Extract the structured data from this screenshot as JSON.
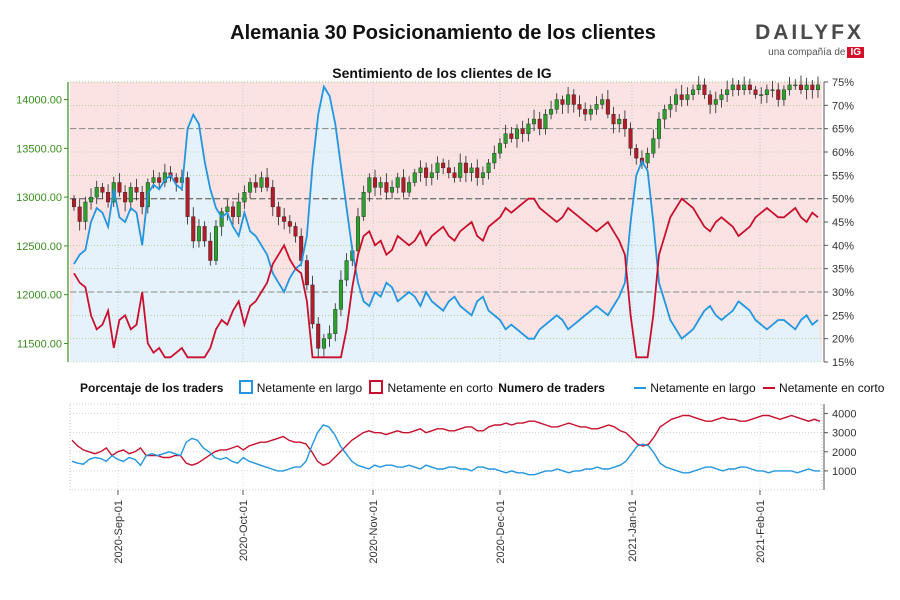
{
  "header": {
    "title": "Alemania 30 Posicionamiento de los clientes",
    "logo_text": "DAILYFX",
    "logo_tagline": "una compañía de",
    "logo_badge": "IG"
  },
  "chart_data": [
    {
      "id": "price-sentiment",
      "type": "candlestick-with-sentiment",
      "title": "Sentimiento de los clientes de IG",
      "left_axis": {
        "ticks": [
          11500,
          12000,
          12500,
          13000,
          13500,
          14000
        ],
        "tick_labels": [
          "11500.00",
          "12000.00",
          "12500.00",
          "13000.00",
          "13500.00",
          "14000.00"
        ],
        "range": [
          11310,
          14180
        ],
        "color": "#3a8d1e"
      },
      "right_axis": {
        "ticks": [
          15,
          20,
          25,
          30,
          35,
          40,
          45,
          50,
          55,
          60,
          65,
          70,
          75
        ],
        "tick_labels": [
          "15%",
          "20%",
          "25%",
          "30%",
          "35%",
          "40%",
          "45%",
          "50%",
          "55%",
          "60%",
          "65%",
          "70%",
          "75%"
        ],
        "range": [
          15,
          75
        ]
      },
      "x_ticks": [
        "2020-Sep-01",
        "2020-Oct-01",
        "2020-Nov-01",
        "2020-Dec-01",
        "2021-Jan-01",
        "2021-Feb-01"
      ],
      "legend": {
        "title": "Porcentaje de los traders",
        "items": [
          "Netamente en largo",
          "Netamente en corto"
        ]
      },
      "colors": {
        "long": "#2296e0",
        "short": "#c8102e",
        "bull": "#2ca02c",
        "bear": "#b01c28",
        "short_fill": "#fbe3e4",
        "long_fill": "#e6f2fb"
      },
      "candle_count": 132,
      "price_close_approx": [
        12900,
        12750,
        12950,
        13000,
        13100,
        13050,
        12950,
        13150,
        13050,
        12950,
        13100,
        13050,
        12900,
        13150,
        13200,
        13150,
        13250,
        13200,
        13150,
        13200,
        12800,
        12550,
        12700,
        12550,
        12350,
        12700,
        12850,
        12900,
        12800,
        12950,
        13050,
        13150,
        13100,
        13200,
        13100,
        12900,
        12800,
        12750,
        12700,
        12600,
        12350,
        12100,
        11700,
        11450,
        11550,
        11600,
        11850,
        12150,
        12350,
        12450,
        12800,
        13050,
        13200,
        13100,
        13150,
        13050,
        13100,
        13200,
        13050,
        13150,
        13250,
        13300,
        13200,
        13250,
        13350,
        13300,
        13250,
        13200,
        13350,
        13250,
        13300,
        13200,
        13250,
        13350,
        13450,
        13550,
        13650,
        13600,
        13700,
        13650,
        13750,
        13800,
        13700,
        13850,
        13900,
        14000,
        13950,
        14050,
        13950,
        13900,
        13850,
        13900,
        13950,
        14000,
        13850,
        13750,
        13800,
        13700,
        13500,
        13400,
        13350,
        13450,
        13600,
        13800,
        13900,
        13950,
        14050,
        14000,
        14050,
        14100,
        14150,
        14050,
        13950,
        14000,
        14050,
        14100,
        14150,
        14100,
        14150,
        14100,
        14050,
        14050,
        14100,
        14100,
        14000,
        14100,
        14150,
        14150,
        14100,
        14150,
        14100,
        14150
      ],
      "net_long_pct_approx": [
        36,
        38,
        39,
        45,
        48,
        47,
        44,
        52,
        46,
        45,
        48,
        47,
        40,
        51,
        53,
        52,
        54,
        55,
        53,
        52,
        65,
        68,
        66,
        58,
        52,
        48,
        46,
        47,
        44,
        42,
        47,
        43,
        42,
        40,
        38,
        34,
        32,
        30,
        33,
        35,
        36,
        42,
        57,
        68,
        74,
        72,
        66,
        57,
        48,
        39,
        32,
        28,
        27,
        30,
        29,
        32,
        31,
        28,
        29,
        30,
        29,
        27,
        30,
        28,
        27,
        26,
        28,
        29,
        27,
        26,
        25,
        28,
        29,
        26,
        25,
        24,
        22,
        23,
        22,
        21,
        20,
        20,
        22,
        23,
        24,
        25,
        24,
        22,
        23,
        24,
        25,
        26,
        27,
        26,
        25,
        27,
        29,
        32,
        45,
        55,
        58,
        56,
        45,
        32,
        28,
        24,
        22,
        20,
        21,
        22,
        24,
        26,
        27,
        25,
        24,
        25,
        26,
        28,
        27,
        26,
        24,
        23,
        22,
        23,
        24,
        24,
        23,
        22,
        24,
        25,
        23,
        24
      ]
    },
    {
      "id": "trader-count",
      "type": "line",
      "legend": {
        "title": "Numero de traders",
        "items": [
          "Netamente en largo",
          "Netamente en corto"
        ]
      },
      "right_axis": {
        "ticks": [
          1000,
          2000,
          3000,
          4000
        ],
        "tick_labels": [
          "1000",
          "2000",
          "3000",
          "4000"
        ],
        "range": [
          0,
          4500
        ]
      },
      "net_long_approx": [
        1500,
        1400,
        1350,
        1600,
        1700,
        1650,
        1500,
        1800,
        1600,
        1500,
        1700,
        1600,
        1300,
        1800,
        1900,
        1800,
        1900,
        2000,
        1900,
        1800,
        2500,
        2700,
        2600,
        2200,
        2000,
        1700,
        1600,
        1700,
        1500,
        1400,
        1700,
        1500,
        1400,
        1300,
        1200,
        1100,
        1000,
        1000,
        1100,
        1200,
        1200,
        1500,
        2300,
        3000,
        3400,
        3300,
        2900,
        2300,
        1900,
        1500,
        1300,
        1200,
        1100,
        1300,
        1200,
        1300,
        1300,
        1200,
        1200,
        1300,
        1200,
        1100,
        1300,
        1200,
        1100,
        1100,
        1200,
        1200,
        1100,
        1100,
        1000,
        1200,
        1200,
        1100,
        1100,
        1000,
        900,
        1000,
        900,
        900,
        800,
        800,
        900,
        1000,
        1000,
        1100,
        1000,
        900,
        1000,
        1000,
        1100,
        1100,
        1200,
        1100,
        1100,
        1200,
        1300,
        1500,
        1900,
        2300,
        2400,
        2300,
        1900,
        1400,
        1200,
        1100,
        1000,
        900,
        900,
        1000,
        1100,
        1200,
        1200,
        1100,
        1000,
        1100,
        1100,
        1200,
        1200,
        1100,
        1000,
        1000,
        900,
        1000,
        1000,
        1000,
        1000,
        900,
        1000,
        1100,
        1000,
        1000
      ],
      "net_short_approx": [
        2600,
        2300,
        2100,
        2000,
        1900,
        2000,
        2200,
        1800,
        2000,
        2100,
        1900,
        2000,
        2200,
        1800,
        1800,
        1800,
        1700,
        1700,
        1800,
        1800,
        1400,
        1300,
        1400,
        1600,
        1800,
        2000,
        2100,
        2100,
        2200,
        2300,
        2100,
        2300,
        2400,
        2500,
        2500,
        2600,
        2700,
        2800,
        2600,
        2500,
        2500,
        2400,
        2000,
        1500,
        1300,
        1400,
        1700,
        2000,
        2300,
        2600,
        2800,
        3000,
        3100,
        3000,
        3000,
        2900,
        3000,
        3100,
        3000,
        3000,
        3100,
        3200,
        3000,
        3100,
        3200,
        3200,
        3100,
        3100,
        3200,
        3300,
        3300,
        3100,
        3100,
        3300,
        3400,
        3400,
        3500,
        3400,
        3500,
        3500,
        3600,
        3600,
        3500,
        3400,
        3300,
        3300,
        3400,
        3500,
        3400,
        3300,
        3300,
        3200,
        3200,
        3300,
        3400,
        3300,
        3100,
        3000,
        2700,
        2400,
        2300,
        2400,
        2800,
        3300,
        3500,
        3700,
        3800,
        3900,
        3900,
        3800,
        3700,
        3600,
        3600,
        3700,
        3800,
        3700,
        3700,
        3600,
        3600,
        3700,
        3800,
        3900,
        3900,
        3800,
        3700,
        3800,
        3900,
        3800,
        3700,
        3600,
        3700,
        3600
      ]
    }
  ],
  "bottom_legend": {
    "pct_title": "Porcentaje de los traders",
    "long_label": "Netamente en largo",
    "short_label": "Netamente en corto",
    "count_title": "Numero de traders",
    "count_long_label": "Netamente en largo",
    "count_short_label": "Netamente en corto"
  }
}
